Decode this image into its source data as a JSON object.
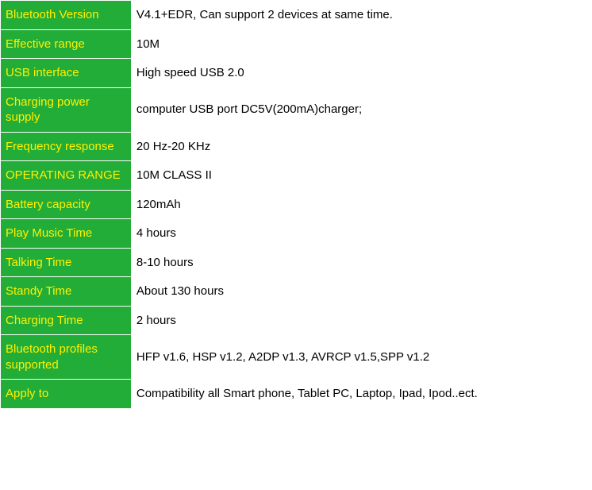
{
  "table": {
    "label_bg_color": "#22ac38",
    "label_text_color": "#fff100",
    "value_bg_color": "#ffffff",
    "value_text_color": "#000000",
    "border_color": "#ffffff",
    "font_size": 15,
    "label_col_width": 165,
    "value_col_width": 581,
    "rows": [
      {
        "label": "Bluetooth Version",
        "value": "V4.1+EDR, Can support 2 devices at same time."
      },
      {
        "label": "Effective range",
        "value": "10M"
      },
      {
        "label": "USB interface",
        "value": "High speed USB 2.0"
      },
      {
        "label": "Charging power supply",
        "value": "computer USB port DC5V(200mA)charger;"
      },
      {
        "label": "Frequency response",
        "value": "20 Hz-20 KHz"
      },
      {
        "label": "OPERATING RANGE",
        "value": "10M  CLASS II"
      },
      {
        "label": "Battery capacity",
        "value": "120mAh"
      },
      {
        "label": "Play Music Time",
        "value": "4 hours"
      },
      {
        "label": "Talking Time",
        "value": "8-10 hours"
      },
      {
        "label": "Standy Time",
        "value": "About 130 hours"
      },
      {
        "label": "Charging Time",
        "value": "2 hours"
      },
      {
        "label": "Bluetooth profiles supported",
        "value": "HFP v1.6, HSP v1.2, A2DP v1.3, AVRCP v1.5,SPP v1.2"
      },
      {
        "label": "Apply to",
        "value": "Compatibility all Smart phone, Tablet PC, Laptop, Ipad, Ipod..ect."
      }
    ]
  }
}
